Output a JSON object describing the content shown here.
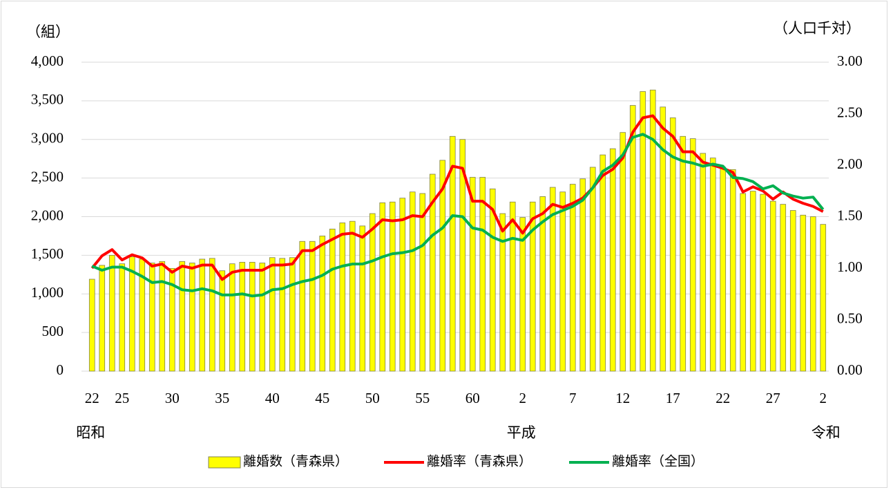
{
  "chart_data": {
    "type": "bar-line",
    "y_label": "（組）",
    "y2_label": "（人口千対）",
    "categories": [
      "22",
      null,
      null,
      "25",
      null,
      null,
      null,
      null,
      "30",
      null,
      null,
      null,
      null,
      "35",
      null,
      null,
      null,
      null,
      "40",
      null,
      null,
      null,
      null,
      "45",
      null,
      null,
      null,
      null,
      "50",
      null,
      null,
      null,
      null,
      "55",
      null,
      null,
      null,
      null,
      "60",
      null,
      null,
      null,
      null,
      "2",
      null,
      null,
      null,
      null,
      "7",
      null,
      null,
      null,
      null,
      "12",
      null,
      null,
      null,
      null,
      "17",
      null,
      null,
      null,
      null,
      "22",
      null,
      null,
      null,
      null,
      "27",
      null,
      null,
      null,
      null,
      "2"
    ],
    "annotations": [
      "昭和",
      "平成",
      "令和"
    ],
    "series": [
      {
        "name": "離婚数（青森県）",
        "kind": "bar",
        "color": "#ffff00",
        "values": [
          1190,
          1370,
          1500,
          1390,
          1480,
          1450,
          1400,
          1420,
          1330,
          1420,
          1400,
          1450,
          1460,
          1300,
          1390,
          1410,
          1410,
          1400,
          1470,
          1460,
          1470,
          1680,
          1680,
          1750,
          1840,
          1920,
          1940,
          1880,
          2040,
          2180,
          2190,
          2240,
          2320,
          2300,
          2550,
          2730,
          3040,
          3000,
          2510,
          2510,
          2360,
          2040,
          2190,
          1990,
          2190,
          2260,
          2380,
          2320,
          2420,
          2490,
          2640,
          2800,
          2880,
          3090,
          3440,
          3620,
          3640,
          3420,
          3280,
          3040,
          3010,
          2820,
          2760,
          2640,
          2610,
          2300,
          2330,
          2290,
          2200,
          2160,
          2080,
          2020,
          2000,
          1900
        ]
      },
      {
        "name": "離婚率（青森県）",
        "kind": "line",
        "axis": "y2",
        "color": "#ff0000",
        "values": [
          1.0,
          1.12,
          1.18,
          1.08,
          1.13,
          1.1,
          1.02,
          1.04,
          0.96,
          1.02,
          1.0,
          1.03,
          1.03,
          0.89,
          0.96,
          0.98,
          0.98,
          0.98,
          1.03,
          1.03,
          1.04,
          1.17,
          1.17,
          1.23,
          1.28,
          1.33,
          1.34,
          1.3,
          1.38,
          1.47,
          1.46,
          1.47,
          1.51,
          1.5,
          1.64,
          1.77,
          1.99,
          1.97,
          1.65,
          1.65,
          1.57,
          1.36,
          1.47,
          1.34,
          1.48,
          1.53,
          1.62,
          1.59,
          1.63,
          1.68,
          1.78,
          1.9,
          1.96,
          2.07,
          2.32,
          2.46,
          2.48,
          2.36,
          2.28,
          2.13,
          2.13,
          2.03,
          2.0,
          1.97,
          1.93,
          1.74,
          1.79,
          1.75,
          1.67,
          1.74,
          1.67,
          1.63,
          1.6,
          1.55
        ]
      },
      {
        "name": "離婚率（全国）",
        "kind": "line",
        "axis": "y2",
        "color": "#00b050",
        "values": [
          1.02,
          0.98,
          1.01,
          1.01,
          0.97,
          0.92,
          0.86,
          0.87,
          0.84,
          0.79,
          0.78,
          0.8,
          0.78,
          0.74,
          0.74,
          0.75,
          0.73,
          0.74,
          0.79,
          0.8,
          0.84,
          0.87,
          0.89,
          0.93,
          0.99,
          1.02,
          1.04,
          1.04,
          1.07,
          1.11,
          1.14,
          1.15,
          1.17,
          1.22,
          1.32,
          1.39,
          1.51,
          1.5,
          1.39,
          1.37,
          1.3,
          1.26,
          1.29,
          1.27,
          1.37,
          1.45,
          1.52,
          1.56,
          1.6,
          1.66,
          1.78,
          1.94,
          2.0,
          2.1,
          2.27,
          2.3,
          2.25,
          2.15,
          2.08,
          2.04,
          2.02,
          1.99,
          2.01,
          1.99,
          1.88,
          1.87,
          1.84,
          1.77,
          1.8,
          1.73,
          1.7,
          1.68,
          1.69,
          1.57
        ]
      }
    ],
    "ylim": [
      0,
      4000
    ],
    "yticks": [
      0,
      500,
      {
        "value": 1000,
        "label": "1,000"
      },
      {
        "value": 1500,
        "label": "1,500"
      },
      {
        "value": 2000,
        "label": "2,000"
      },
      {
        "value": 2500,
        "label": "2,500"
      },
      {
        "value": 3000,
        "label": "3,000"
      },
      {
        "value": 3500,
        "label": "3,500"
      },
      {
        "value": 4000,
        "label": "4,000"
      }
    ],
    "y2lim": [
      0,
      3
    ],
    "y2ticks": [
      {
        "value": 0,
        "label": "0.00"
      },
      {
        "value": 0.5,
        "label": "0.50"
      },
      {
        "value": 1,
        "label": "1.00"
      },
      {
        "value": 1.5,
        "label": "1.50"
      },
      {
        "value": 2,
        "label": "2.00"
      },
      {
        "value": 2.5,
        "label": "2.50"
      },
      {
        "value": 3,
        "label": "3.00"
      }
    ],
    "grid": true,
    "legend": "bottom"
  }
}
